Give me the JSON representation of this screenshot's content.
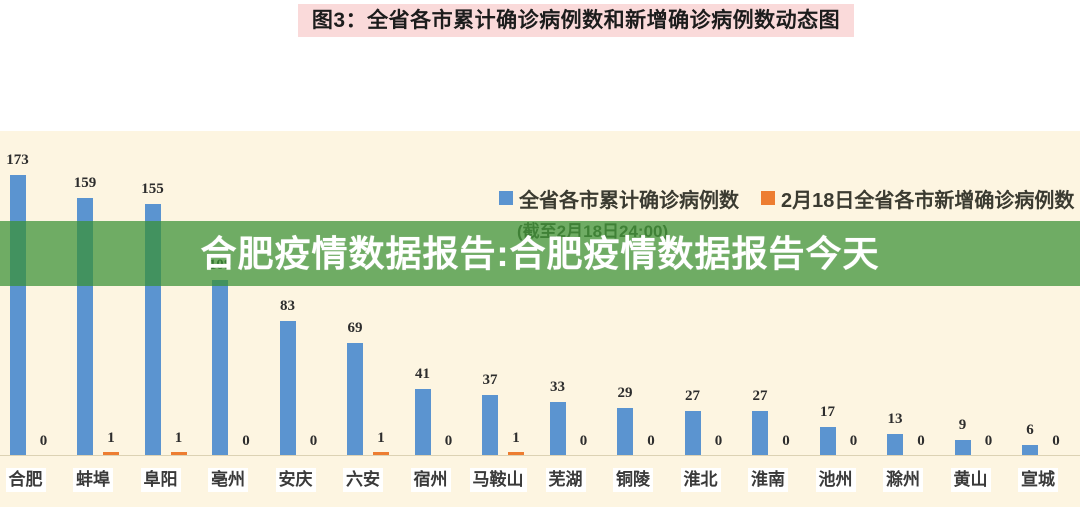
{
  "banner": {
    "title": "图3：全省各市累计确诊病例数和新增确诊病例数动态图"
  },
  "overlay": {
    "text": "合肥疫情数据报告:合肥疫情数据报告今天"
  },
  "legend": {
    "series1_label": "全省各市累计确诊病例数",
    "series2_label": "2月18日全省各市新增确诊病例数",
    "note": "(截至2月18日24:00)"
  },
  "colors": {
    "cumulative_blue": "#5b94d0",
    "new_orange": "#ed7d31",
    "chart_background": "#fdf5e1",
    "banner_pink": "#fadada",
    "band_green": "rgba(57,145,54,0.73)"
  },
  "chart_data": {
    "type": "bar",
    "title": "图3：全省各市累计确诊病例数和新增确诊病例数动态图",
    "categories": [
      "合肥",
      "蚌埠",
      "阜阳",
      "亳州",
      "安庆",
      "六安",
      "宿州",
      "马鞍山",
      "芜湖",
      "铜陵",
      "淮北",
      "淮南",
      "池州",
      "滁州",
      "黄山",
      "宣城"
    ],
    "series": [
      {
        "name": "全省各市累计确诊病例数",
        "color": "#5b94d0",
        "values": [
          173,
          159,
          155,
          108,
          83,
          69,
          41,
          37,
          33,
          29,
          27,
          27,
          17,
          13,
          9,
          6
        ]
      },
      {
        "name": "2月18日全省各市新增确诊病例数",
        "color": "#ed7d31",
        "values": [
          0,
          1,
          1,
          0,
          0,
          1,
          0,
          1,
          0,
          0,
          0,
          0,
          0,
          0,
          0,
          0
        ]
      }
    ],
    "note": "(截至2月18日24:00)",
    "ylim": [
      0,
      180
    ],
    "grid": false,
    "legend_position": "top-right",
    "value_labels": true
  }
}
